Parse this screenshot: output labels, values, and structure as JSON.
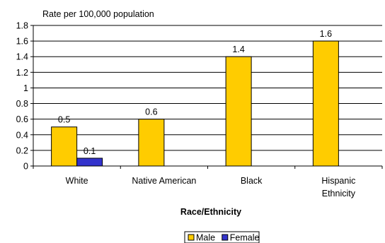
{
  "chart_data": {
    "type": "bar",
    "ylabel": "Rate per 100,000 population",
    "xlabel": "Race/Ethnicity",
    "categories": [
      [
        "White"
      ],
      [
        "Native American"
      ],
      [
        "Black"
      ],
      [
        "Hispanic",
        "Ethnicity"
      ]
    ],
    "ylim": [
      0,
      1.8
    ],
    "yticks": [
      "0",
      "0.2",
      "0.4",
      "0.6",
      "0.8",
      "1",
      "1.2",
      "1.4",
      "1.6",
      "1.8"
    ],
    "grid": true,
    "legend_position": "bottom",
    "series": [
      {
        "name": "Male",
        "color": "#FFCC00",
        "values": [
          0.5,
          0.6,
          1.4,
          1.6
        ],
        "labels": [
          "0.5",
          "0.6",
          "1.4",
          "1.6"
        ]
      },
      {
        "name": "Female",
        "color": "#3333CC",
        "values": [
          0.1,
          null,
          null,
          null
        ],
        "labels": [
          "0.1",
          "",
          "",
          ""
        ]
      }
    ]
  }
}
